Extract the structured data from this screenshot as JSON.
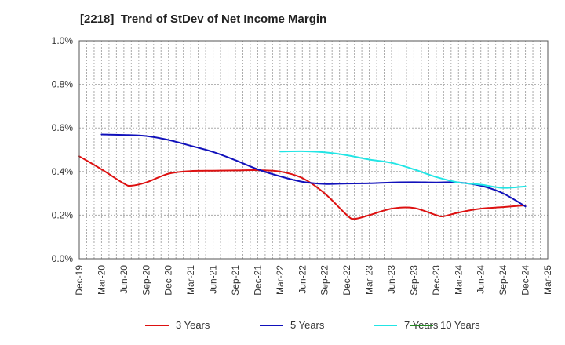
{
  "chart_data": {
    "type": "line",
    "title": "[2218]  Trend of StDev of Net Income Margin",
    "xlabel": "",
    "ylabel": "",
    "x_ticks": [
      "Dec-19",
      "Mar-20",
      "Jun-20",
      "Sep-20",
      "Dec-20",
      "Mar-21",
      "Jun-21",
      "Sep-21",
      "Dec-21",
      "Mar-22",
      "Jun-22",
      "Sep-22",
      "Dec-22",
      "Mar-23",
      "Jun-23",
      "Sep-23",
      "Dec-23",
      "Mar-24",
      "Jun-24",
      "Sep-24",
      "Dec-24",
      "Mar-25"
    ],
    "y_ticks": [
      "0.0%",
      "0.2%",
      "0.4%",
      "0.6%",
      "0.8%",
      "1.0%"
    ],
    "ylim": [
      0,
      1.0
    ],
    "y_unit": "%",
    "grid": true,
    "legend_position": "bottom",
    "series": [
      {
        "name": "3 Years",
        "color": "#dd1111",
        "values": [
          {
            "x": "Dec-19",
            "y": 0.47
          },
          {
            "x": "Mar-20",
            "y": 0.41
          },
          {
            "x": "Jun-20",
            "y": 0.345
          },
          {
            "x": "Jul-20",
            "y": 0.335
          },
          {
            "x": "Sep-20",
            "y": 0.35
          },
          {
            "x": "Dec-20",
            "y": 0.39
          },
          {
            "x": "Mar-21",
            "y": 0.402
          },
          {
            "x": "Jun-21",
            "y": 0.404
          },
          {
            "x": "Sep-21",
            "y": 0.405
          },
          {
            "x": "Dec-21",
            "y": 0.406
          },
          {
            "x": "Mar-22",
            "y": 0.4
          },
          {
            "x": "Jun-22",
            "y": 0.37
          },
          {
            "x": "Sep-22",
            "y": 0.3
          },
          {
            "x": "Dec-22",
            "y": 0.2
          },
          {
            "x": "Jan-23",
            "y": 0.183
          },
          {
            "x": "Mar-23",
            "y": 0.2
          },
          {
            "x": "Jun-23",
            "y": 0.23
          },
          {
            "x": "Sep-23",
            "y": 0.233
          },
          {
            "x": "Dec-23",
            "y": 0.2
          },
          {
            "x": "Jan-24",
            "y": 0.195
          },
          {
            "x": "Mar-24",
            "y": 0.212
          },
          {
            "x": "Jun-24",
            "y": 0.23
          },
          {
            "x": "Sep-24",
            "y": 0.237
          },
          {
            "x": "Dec-24",
            "y": 0.245
          }
        ]
      },
      {
        "name": "5 Years",
        "color": "#1111bb",
        "values": [
          {
            "x": "Dec-19",
            "y": null
          },
          {
            "x": "Mar-20",
            "y": 0.57
          },
          {
            "x": "Jun-20",
            "y": 0.568
          },
          {
            "x": "Sep-20",
            "y": 0.563
          },
          {
            "x": "Dec-20",
            "y": 0.545
          },
          {
            "x": "Mar-21",
            "y": 0.518
          },
          {
            "x": "Jun-21",
            "y": 0.49
          },
          {
            "x": "Sep-21",
            "y": 0.452
          },
          {
            "x": "Dec-21",
            "y": 0.41
          },
          {
            "x": "Mar-22",
            "y": 0.378
          },
          {
            "x": "Jun-22",
            "y": 0.353
          },
          {
            "x": "Sep-22",
            "y": 0.343
          },
          {
            "x": "Dec-22",
            "y": 0.345
          },
          {
            "x": "Mar-23",
            "y": 0.346
          },
          {
            "x": "Jun-23",
            "y": 0.35
          },
          {
            "x": "Sep-23",
            "y": 0.351
          },
          {
            "x": "Dec-23",
            "y": 0.35
          },
          {
            "x": "Mar-24",
            "y": 0.35
          },
          {
            "x": "Jun-24",
            "y": 0.335
          },
          {
            "x": "Sep-24",
            "y": 0.3
          },
          {
            "x": "Dec-24",
            "y": 0.24
          }
        ]
      },
      {
        "name": "7 Years",
        "color": "#22e5e5",
        "values": [
          {
            "x": "Mar-22",
            "y": 0.492
          },
          {
            "x": "Jun-22",
            "y": 0.493
          },
          {
            "x": "Sep-22",
            "y": 0.488
          },
          {
            "x": "Dec-22",
            "y": 0.475
          },
          {
            "x": "Mar-23",
            "y": 0.455
          },
          {
            "x": "Jun-23",
            "y": 0.44
          },
          {
            "x": "Sep-23",
            "y": 0.41
          },
          {
            "x": "Dec-23",
            "y": 0.375
          },
          {
            "x": "Mar-24",
            "y": 0.35
          },
          {
            "x": "Jun-24",
            "y": 0.34
          },
          {
            "x": "Sep-24",
            "y": 0.325
          },
          {
            "x": "Dec-24",
            "y": 0.332
          }
        ]
      },
      {
        "name": "10 Years",
        "color": "#228822",
        "values": []
      }
    ]
  }
}
